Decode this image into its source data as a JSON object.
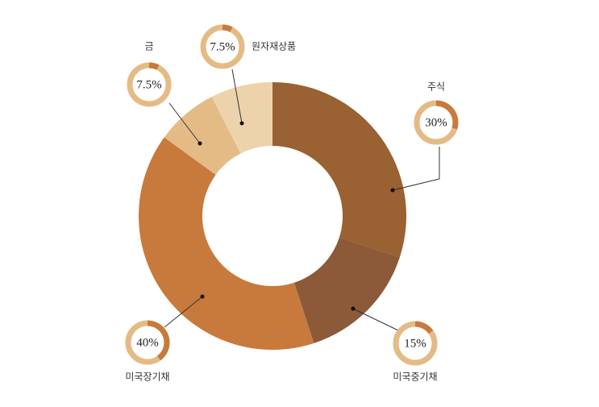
{
  "chart_data": {
    "type": "donut",
    "categories": [
      "주식",
      "미국중기채",
      "미국장기채",
      "금",
      "원자재상품"
    ],
    "values": [
      30,
      15,
      40,
      7.5,
      7.5
    ],
    "value_labels": [
      "30%",
      "15%",
      "40%",
      "7.5%",
      "7.5%"
    ],
    "colors": [
      "#9a6132",
      "#8c5a38",
      "#c87a3c",
      "#e5bb85",
      "#edd3ab"
    ]
  }
}
